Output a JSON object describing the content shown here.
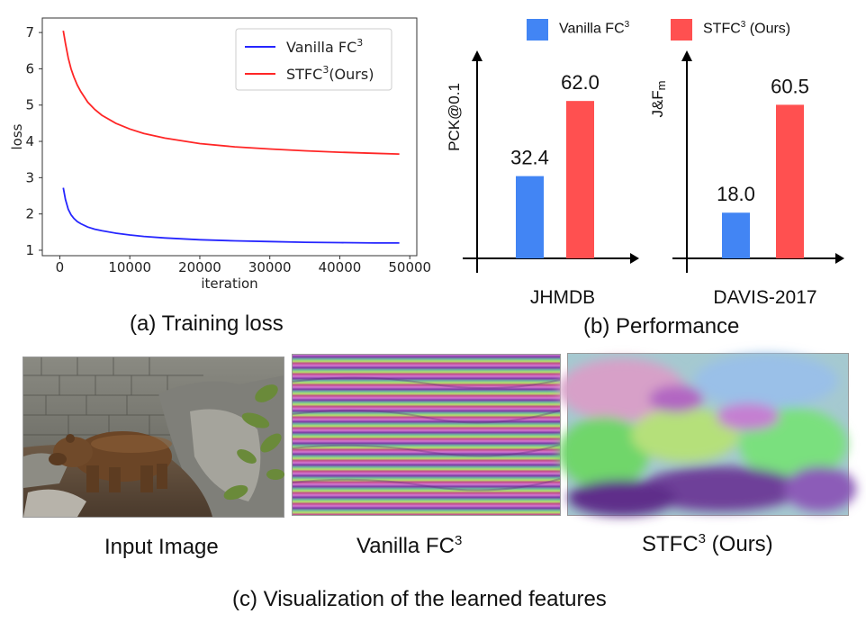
{
  "chart_data": [
    {
      "type": "line",
      "title": "",
      "xlabel": "iteration",
      "ylabel": "loss",
      "xlim": [
        -2500,
        51000
      ],
      "ylim": [
        0.85,
        7.4
      ],
      "xticks": [
        0,
        10000,
        20000,
        30000,
        40000,
        50000
      ],
      "xtick_labels": [
        "0",
        "10000",
        "20000",
        "30000",
        "40000",
        "50000"
      ],
      "yticks": [
        1,
        2,
        3,
        4,
        5,
        6,
        7
      ],
      "ytick_labels": [
        "1",
        "2",
        "3",
        "4",
        "5",
        "6",
        "7"
      ],
      "legend": "top-right",
      "series": [
        {
          "name": "Vanilla FC³",
          "legend_text": "Vanilla FC",
          "legend_sup": "3",
          "color": "#2626ff",
          "x": [
            500,
            800,
            1200,
            1600,
            2000,
            2500,
            3000,
            4000,
            5000,
            6000,
            8000,
            10000,
            12000,
            15000,
            20000,
            25000,
            30000,
            35000,
            40000,
            45000,
            48500
          ],
          "y": [
            2.72,
            2.4,
            2.13,
            1.98,
            1.88,
            1.79,
            1.73,
            1.64,
            1.58,
            1.54,
            1.47,
            1.42,
            1.38,
            1.34,
            1.29,
            1.26,
            1.24,
            1.22,
            1.21,
            1.2,
            1.2
          ]
        },
        {
          "name": "STFC³(Ours)",
          "legend_text": "STFC",
          "legend_sup": "3",
          "legend_suffix": "(Ours)",
          "color": "#ff2626",
          "x": [
            500,
            800,
            1200,
            1600,
            2000,
            2500,
            3000,
            4000,
            5000,
            6000,
            8000,
            10000,
            12000,
            15000,
            20000,
            25000,
            30000,
            35000,
            40000,
            45000,
            48500
          ],
          "y": [
            7.05,
            6.7,
            6.3,
            6.0,
            5.78,
            5.55,
            5.37,
            5.08,
            4.88,
            4.72,
            4.5,
            4.34,
            4.22,
            4.09,
            3.94,
            3.85,
            3.79,
            3.74,
            3.7,
            3.67,
            3.65
          ]
        }
      ]
    },
    {
      "type": "bar",
      "ylabel": "PCK@0.1",
      "xlabel": "JHMDB",
      "series": [
        {
          "name": "Vanilla FC³",
          "value": 32.4,
          "label": "32.4",
          "color": "#4285f4"
        },
        {
          "name": "STFC³ (Ours)",
          "value": 62.0,
          "label": "62.0",
          "color": "#ff5050"
        }
      ]
    },
    {
      "type": "bar",
      "ylabel": "J&F",
      "ylabel_sub": "m",
      "xlabel": "DAVIS-2017",
      "series": [
        {
          "name": "Vanilla FC³",
          "value": 18.0,
          "label": "18.0",
          "color": "#4285f4"
        },
        {
          "name": "STFC³ (Ours)",
          "value": 60.5,
          "label": "60.5",
          "color": "#ff5050"
        }
      ]
    }
  ],
  "bar_legend": [
    {
      "text": "Vanilla FC",
      "sup": "3",
      "suffix": "",
      "color": "#4285f4"
    },
    {
      "text": "STFC",
      "sup": "3",
      "suffix": " (Ours)",
      "color": "#ff5050"
    }
  ],
  "captions": {
    "a": "(a) Training loss",
    "b": "(b) Performance",
    "c": "(c) Visualization of the learned features",
    "input": "Input Image",
    "vanilla": "Vanilla FC",
    "vanilla_sup": "3",
    "stfc": "STFC",
    "stfc_sup": "3",
    "stfc_suffix": " (Ours)"
  }
}
